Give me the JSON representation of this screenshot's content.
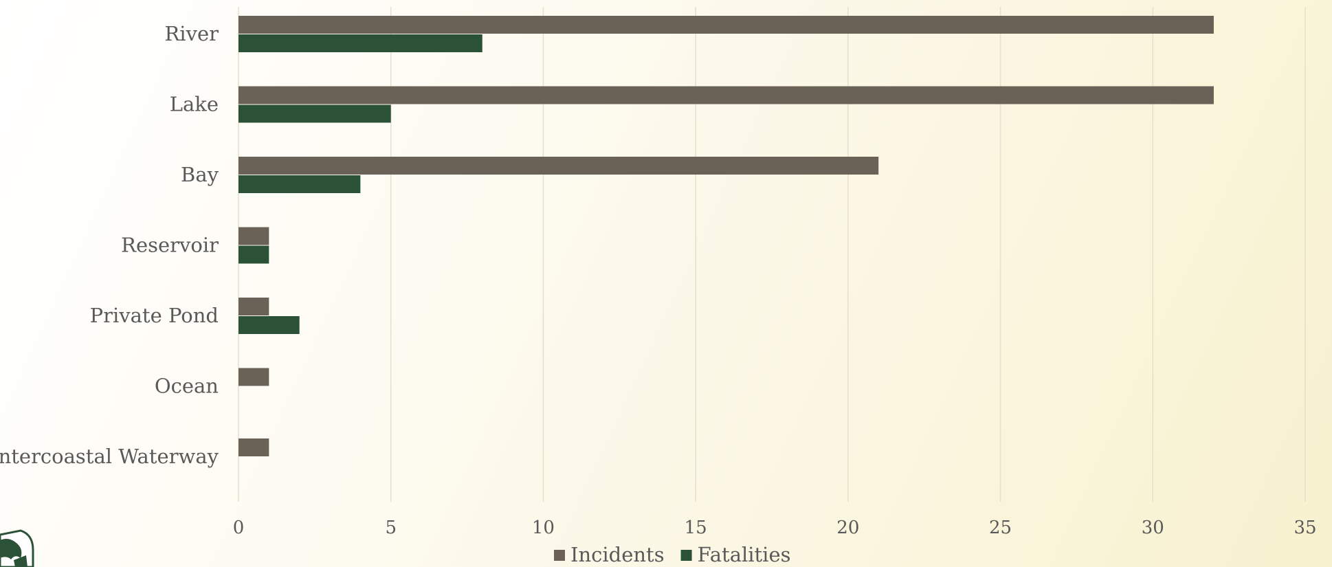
{
  "chart_data": {
    "type": "bar",
    "orientation": "horizontal",
    "categories": [
      "River",
      "Lake",
      "Bay",
      "Reservoir",
      "Private Pond",
      "Ocean",
      "Intercoastal Waterway"
    ],
    "series": [
      {
        "name": "Incidents",
        "color": "#6b6257",
        "values": [
          32,
          32,
          21,
          1,
          1,
          1,
          1
        ]
      },
      {
        "name": "Fatalities",
        "color": "#2b5137",
        "values": [
          8,
          5,
          4,
          1,
          2,
          0,
          0
        ]
      }
    ],
    "x_ticks": [
      "0",
      "5",
      "10",
      "15",
      "20",
      "25",
      "30",
      "35"
    ],
    "xlim": [
      0,
      35
    ],
    "grid": true,
    "legend_position": "bottom",
    "title": "",
    "xlabel": "",
    "ylabel": ""
  },
  "colors": {
    "incidents": "#6b6257",
    "fatalities": "#2b5137",
    "text": "#595959",
    "gridline": "#e4e0cc"
  },
  "icons": {
    "logo": "agency-seal-icon"
  }
}
